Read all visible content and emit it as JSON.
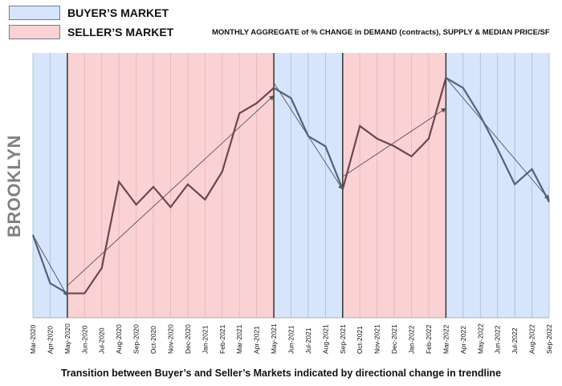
{
  "legend": {
    "buyer_label": "BUYER’S MARKET",
    "seller_label": "SELLER’S MARKET",
    "buyer_color": "#d6e4fc",
    "seller_color": "#fbd2d4"
  },
  "side_label": "BROOKLYN",
  "caption": "Transition between Buyer’s and Seller’s Markets indicated by directional change in trendline",
  "chart_data": {
    "type": "line",
    "title": "MONTHLY AGGREGATE of % CHANGE in DEMAND (contracts), SUPPLY & MEDIAN PRICE/SF",
    "xlabel": "",
    "ylabel": "",
    "ylim": [
      0,
      100
    ],
    "grid": "vertical",
    "categories": [
      "Mar-2020",
      "Apr-2020",
      "May-2020",
      "Jun-2020",
      "Jul-2020",
      "Aug-2020",
      "Sep-2020",
      "Oct-2020",
      "Nov-2020",
      "Dec-2020",
      "Jan-2021",
      "Feb-2021",
      "Mar-2021",
      "Apr-2021",
      "May-2021",
      "Jun-2021",
      "Jul-2021",
      "Aug-2021",
      "Sep-2021",
      "Oct-2021",
      "Nov-2021",
      "Dec-2021",
      "Jan-2022",
      "Feb-2022",
      "Mar-2022",
      "Apr-2022",
      "May-2022",
      "Jun-2022",
      "Jul-2022",
      "Aug-2022",
      "Sep-2022"
    ],
    "series": [
      {
        "values": [
          32,
          13,
          9,
          9,
          19,
          53,
          44,
          51,
          43,
          52,
          46,
          57,
          80,
          84,
          90,
          86,
          71,
          67,
          50,
          75,
          70,
          67,
          63,
          70,
          94,
          90,
          79,
          66,
          52,
          58,
          45
        ]
      }
    ],
    "regimes": [
      {
        "market": "buyer",
        "from": "Mar-2020",
        "to": "May-2020"
      },
      {
        "market": "seller",
        "from": "May-2020",
        "to": "May-2021"
      },
      {
        "market": "buyer",
        "from": "May-2021",
        "to": "Sep-2021"
      },
      {
        "market": "seller",
        "from": "Sep-2021",
        "to": "Mar-2022"
      },
      {
        "market": "buyer",
        "from": "Mar-2022",
        "to": "Sep-2022"
      }
    ],
    "trendlines": [
      {
        "from": "Mar-2020",
        "from_value": 32,
        "to": "May-2020",
        "to_value": 8
      },
      {
        "from": "May-2020",
        "from_value": 12,
        "to": "May-2021",
        "to_value": 87
      },
      {
        "from": "May-2021",
        "from_value": 92,
        "to": "Sep-2021",
        "to_value": 50
      },
      {
        "from": "Sep-2021",
        "from_value": 55,
        "to": "Mar-2022",
        "to_value": 82
      },
      {
        "from": "Mar-2022",
        "from_value": 94,
        "to": "Sep-2022",
        "to_value": 46
      }
    ],
    "colors": {
      "seller_line": "#6b4650",
      "buyer_line": "#56607a",
      "trend": "#555555"
    }
  }
}
